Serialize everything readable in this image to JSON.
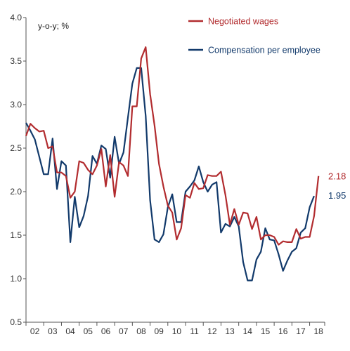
{
  "chart_data": {
    "type": "line",
    "unit_label": "y-o-y; %",
    "ylim": [
      0.5,
      4.0
    ],
    "y_ticks": [
      "0.5",
      "1.0",
      "1.5",
      "2.0",
      "2.5",
      "3.0",
      "3.5",
      "4.0"
    ],
    "xlim": [
      2002.0,
      2018.85
    ],
    "x_tick_labels": [
      "02",
      "03",
      "04",
      "05",
      "06",
      "07",
      "08",
      "09",
      "10",
      "11",
      "12",
      "13",
      "14",
      "15",
      "16",
      "17",
      "18"
    ],
    "grid": false,
    "legend_position": "top-right",
    "series": [
      {
        "name": "Negotiated wages",
        "color": "#b22c2f",
        "end_label": "2.18",
        "points": [
          [
            2002.0,
            2.64
          ],
          [
            2002.25,
            2.78
          ],
          [
            2002.5,
            2.73
          ],
          [
            2002.75,
            2.69
          ],
          [
            2003.0,
            2.7
          ],
          [
            2003.25,
            2.5
          ],
          [
            2003.5,
            2.52
          ],
          [
            2003.75,
            2.22
          ],
          [
            2004.0,
            2.22
          ],
          [
            2004.25,
            2.18
          ],
          [
            2004.5,
            1.93
          ],
          [
            2004.75,
            2.0
          ],
          [
            2005.0,
            2.35
          ],
          [
            2005.25,
            2.33
          ],
          [
            2005.5,
            2.25
          ],
          [
            2005.75,
            2.2
          ],
          [
            2006.0,
            2.3
          ],
          [
            2006.25,
            2.49
          ],
          [
            2006.5,
            2.06
          ],
          [
            2006.75,
            2.42
          ],
          [
            2007.0,
            1.94
          ],
          [
            2007.25,
            2.34
          ],
          [
            2007.5,
            2.3
          ],
          [
            2007.75,
            2.18
          ],
          [
            2008.0,
            2.98
          ],
          [
            2008.25,
            2.98
          ],
          [
            2008.5,
            3.53
          ],
          [
            2008.75,
            3.66
          ],
          [
            2009.0,
            3.12
          ],
          [
            2009.25,
            2.76
          ],
          [
            2009.5,
            2.32
          ],
          [
            2009.75,
            2.06
          ],
          [
            2010.0,
            1.84
          ],
          [
            2010.25,
            1.76
          ],
          [
            2010.5,
            1.45
          ],
          [
            2010.75,
            1.58
          ],
          [
            2011.0,
            1.96
          ],
          [
            2011.25,
            1.93
          ],
          [
            2011.5,
            2.1
          ],
          [
            2011.75,
            2.03
          ],
          [
            2012.0,
            2.04
          ],
          [
            2012.25,
            2.19
          ],
          [
            2012.5,
            2.18
          ],
          [
            2012.75,
            2.18
          ],
          [
            2013.0,
            2.23
          ],
          [
            2013.25,
            1.96
          ],
          [
            2013.5,
            1.62
          ],
          [
            2013.75,
            1.8
          ],
          [
            2014.0,
            1.62
          ],
          [
            2014.25,
            1.76
          ],
          [
            2014.5,
            1.75
          ],
          [
            2014.75,
            1.57
          ],
          [
            2015.0,
            1.71
          ],
          [
            2015.25,
            1.45
          ],
          [
            2015.5,
            1.5
          ],
          [
            2015.75,
            1.5
          ],
          [
            2016.0,
            1.48
          ],
          [
            2016.25,
            1.39
          ],
          [
            2016.5,
            1.43
          ],
          [
            2016.75,
            1.42
          ],
          [
            2017.0,
            1.42
          ],
          [
            2017.25,
            1.57
          ],
          [
            2017.5,
            1.46
          ],
          [
            2017.75,
            1.48
          ],
          [
            2018.0,
            1.48
          ],
          [
            2018.25,
            1.72
          ],
          [
            2018.5,
            2.18
          ]
        ]
      },
      {
        "name": "Compensation per employee",
        "color": "#123a6b",
        "end_label": "1.95",
        "points": [
          [
            2002.0,
            2.79
          ],
          [
            2002.25,
            2.7
          ],
          [
            2002.5,
            2.6
          ],
          [
            2002.75,
            2.4
          ],
          [
            2003.0,
            2.2
          ],
          [
            2003.25,
            2.2
          ],
          [
            2003.5,
            2.61
          ],
          [
            2003.75,
            2.03
          ],
          [
            2004.0,
            2.35
          ],
          [
            2004.25,
            2.3
          ],
          [
            2004.5,
            1.42
          ],
          [
            2004.75,
            1.94
          ],
          [
            2005.0,
            1.59
          ],
          [
            2005.25,
            1.72
          ],
          [
            2005.5,
            1.95
          ],
          [
            2005.75,
            2.41
          ],
          [
            2006.0,
            2.32
          ],
          [
            2006.25,
            2.53
          ],
          [
            2006.5,
            2.49
          ],
          [
            2006.75,
            2.16
          ],
          [
            2007.0,
            2.63
          ],
          [
            2007.25,
            2.32
          ],
          [
            2007.5,
            2.45
          ],
          [
            2007.75,
            2.85
          ],
          [
            2008.0,
            3.24
          ],
          [
            2008.25,
            3.42
          ],
          [
            2008.5,
            3.42
          ],
          [
            2008.75,
            2.87
          ],
          [
            2009.0,
            1.9
          ],
          [
            2009.25,
            1.45
          ],
          [
            2009.5,
            1.42
          ],
          [
            2009.75,
            1.51
          ],
          [
            2010.0,
            1.82
          ],
          [
            2010.25,
            1.97
          ],
          [
            2010.5,
            1.65
          ],
          [
            2010.75,
            1.65
          ],
          [
            2011.0,
            2.0
          ],
          [
            2011.25,
            2.06
          ],
          [
            2011.5,
            2.13
          ],
          [
            2011.75,
            2.29
          ],
          [
            2012.0,
            2.11
          ],
          [
            2012.25,
            2.0
          ],
          [
            2012.5,
            2.08
          ],
          [
            2012.75,
            2.11
          ],
          [
            2013.0,
            1.53
          ],
          [
            2013.25,
            1.63
          ],
          [
            2013.5,
            1.6
          ],
          [
            2013.75,
            1.71
          ],
          [
            2014.0,
            1.6
          ],
          [
            2014.25,
            1.19
          ],
          [
            2014.5,
            0.98
          ],
          [
            2014.75,
            0.98
          ],
          [
            2015.0,
            1.22
          ],
          [
            2015.25,
            1.31
          ],
          [
            2015.5,
            1.58
          ],
          [
            2015.75,
            1.45
          ],
          [
            2016.0,
            1.44
          ],
          [
            2016.25,
            1.28
          ],
          [
            2016.5,
            1.09
          ],
          [
            2016.75,
            1.21
          ],
          [
            2017.0,
            1.31
          ],
          [
            2017.25,
            1.35
          ],
          [
            2017.5,
            1.53
          ],
          [
            2017.75,
            1.58
          ],
          [
            2018.0,
            1.82
          ],
          [
            2018.25,
            1.95
          ]
        ]
      }
    ]
  }
}
